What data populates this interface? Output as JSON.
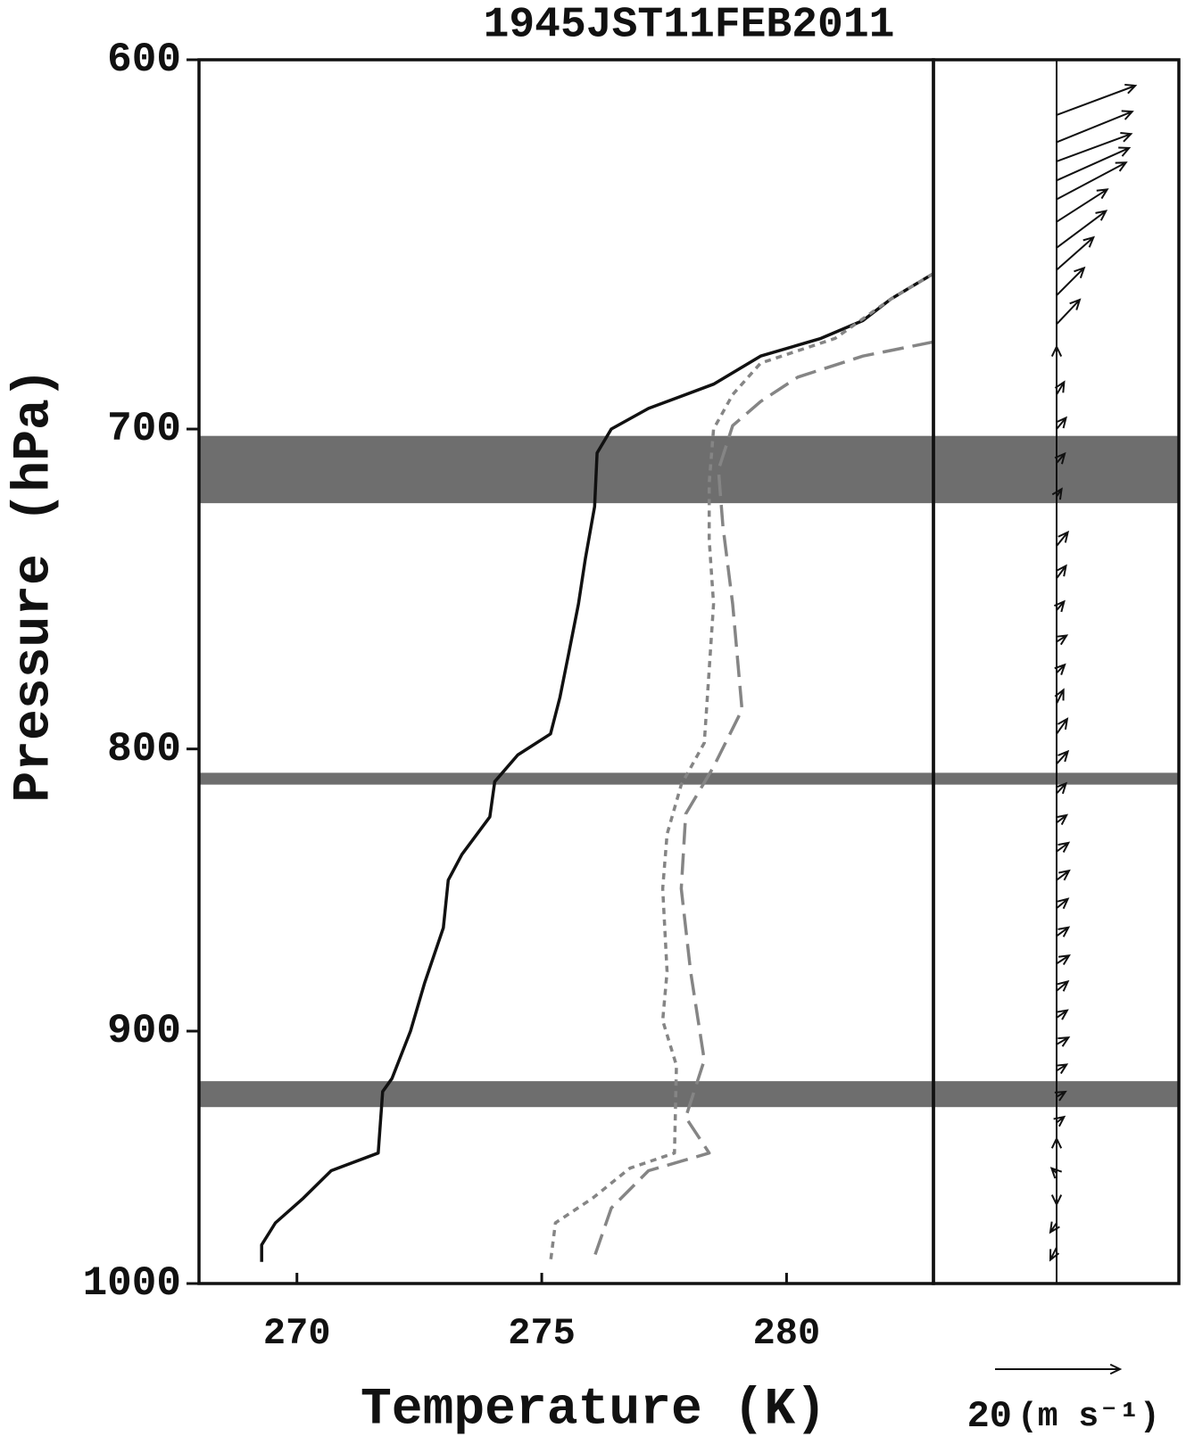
{
  "chart_data": {
    "type": "profile",
    "title": "1945JST11FEB2011",
    "xlabel": "Temperature (K)",
    "ylabel": "Pressure (hPa)",
    "xlim": [
      268,
      283
    ],
    "xticks": [
      270,
      275,
      280
    ],
    "ylim": [
      1000,
      600
    ],
    "yticks": [
      600,
      700,
      800,
      900,
      1000
    ],
    "y_scale": "log",
    "bands": [
      [
        702,
        722
      ],
      [
        808,
        812
      ],
      [
        919,
        929
      ]
    ],
    "band_color": "#6e6e6e",
    "series": [
      {
        "color": "#111111",
        "style": "solid",
        "x": [
          283.0,
          282.13,
          281.56,
          280.7,
          279.47,
          278.51,
          277.18,
          276.42,
          276.13,
          276.08,
          275.89,
          275.75,
          275.56,
          275.37,
          275.18,
          274.51,
          274.04,
          273.94,
          273.37,
          273.09,
          272.99,
          272.61,
          272.32,
          271.94,
          271.75,
          271.66,
          270.7,
          270.13,
          269.56,
          269.28,
          269.28
        ],
        "y": [
          656,
          663,
          669,
          674,
          679,
          687,
          694,
          700,
          707,
          723,
          739,
          753,
          768,
          783,
          795,
          802,
          811,
          823,
          836,
          845,
          862,
          882,
          900,
          918,
          923,
          947,
          954,
          965,
          975,
          984,
          991
        ]
      },
      {
        "color": "#858585",
        "style": "dotted",
        "x": [
          283.0,
          282.13,
          280.99,
          279.47,
          278.9,
          278.51,
          278.42,
          278.42,
          278.51,
          278.42,
          278.32,
          277.85,
          277.56,
          277.47,
          277.56,
          277.47,
          277.75,
          277.71,
          276.8,
          276.04,
          275.28,
          275.18
        ],
        "y": [
          656,
          663,
          674,
          681,
          690,
          700,
          716,
          733,
          753,
          774,
          798,
          812,
          829,
          848,
          878,
          896,
          913,
          947,
          953,
          965,
          975,
          991
        ]
      },
      {
        "color": "#858585",
        "style": "dashed",
        "x": [
          283.0,
          281.56,
          280.23,
          279.47,
          278.9,
          278.61,
          278.7,
          278.9,
          279.09,
          278.51,
          277.94,
          277.85,
          278.04,
          278.32,
          277.94,
          278.42,
          277.18,
          276.42,
          276.04
        ],
        "y": [
          675,
          679,
          685,
          692,
          699,
          712,
          729,
          753,
          787,
          806,
          822,
          848,
          878,
          911,
          933,
          947,
          954,
          969,
          991
        ]
      }
    ],
    "wind": {
      "pressure": [
        614,
        621,
        626,
        631,
        636,
        642,
        649,
        655,
        662,
        670,
        679,
        690,
        700,
        710,
        720,
        735,
        745,
        755,
        765,
        775,
        785,
        795,
        805,
        815,
        825,
        835,
        845,
        855,
        865,
        875,
        885,
        895,
        905,
        915,
        925,
        935,
        945,
        955,
        965,
        975,
        985
      ],
      "u": [
        12.6,
        12.1,
        11.9,
        11.6,
        11.1,
        8.1,
        7.9,
        5.9,
        4.4,
        3.7,
        0,
        1.2,
        1.5,
        1.3,
        0.8,
        1.8,
        1.5,
        1.2,
        1.6,
        1.3,
        1.1,
        1.7,
        1.8,
        1.5,
        1.6,
        1.9,
        2.0,
        1.8,
        1.9,
        2.0,
        1.8,
        1.7,
        1.9,
        1.6,
        1.4,
        1.2,
        0,
        -0.8,
        0,
        -1.0,
        -1.0
      ],
      "v": [
        4.7,
        4.9,
        4.4,
        5.2,
        5.9,
        5.2,
        5.9,
        5.2,
        4.4,
        3.9,
        1.5,
        2.0,
        1.8,
        1.5,
        1.2,
        2.2,
        2.0,
        1.4,
        1.0,
        1.3,
        2.2,
        2.4,
        2.0,
        1.6,
        1.2,
        1.4,
        1.5,
        1.5,
        1.4,
        1.3,
        1.5,
        1.2,
        1.1,
        1.0,
        0.8,
        0.9,
        1.5,
        0.8,
        -1.0,
        -1.5,
        -2.0
      ],
      "color": "#111111",
      "ref": 20,
      "unit": "(m s⁻¹)"
    }
  }
}
